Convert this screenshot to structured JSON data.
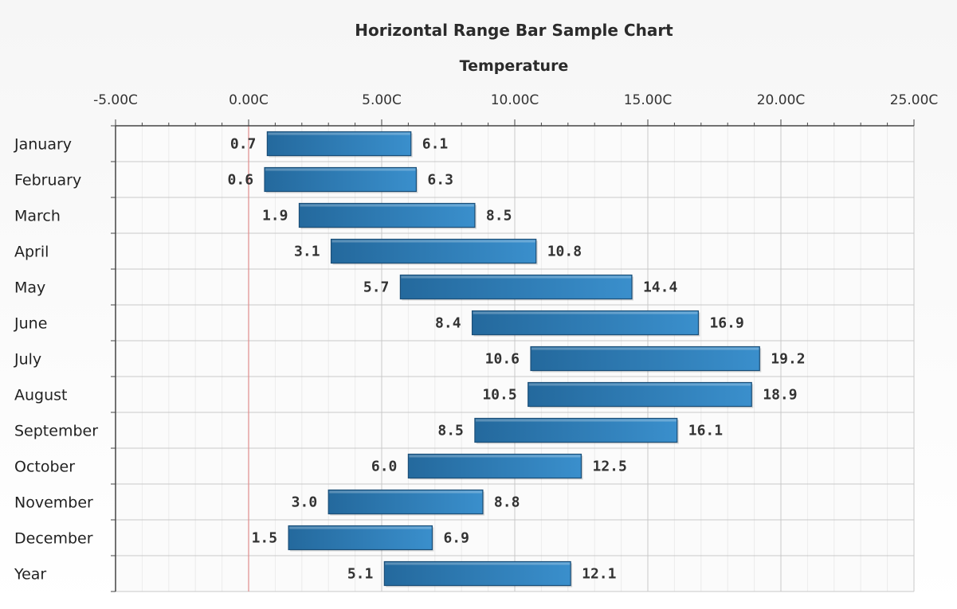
{
  "chart_data": {
    "type": "bar",
    "orientation": "horizontal",
    "range": true,
    "title": "Horizontal Range Bar Sample Chart",
    "xlabel": "Temperature",
    "ylabel": "",
    "xlim": [
      -5,
      25
    ],
    "x_tick_step": 5,
    "x_tick_labels": [
      "-5.00C",
      "0.00C",
      "5.00C",
      "10.00C",
      "15.00C",
      "20.00C",
      "25.00C"
    ],
    "categories": [
      "January",
      "February",
      "March",
      "April",
      "May",
      "June",
      "July",
      "August",
      "September",
      "October",
      "November",
      "December",
      "Year"
    ],
    "series": [
      {
        "low": [
          0.7,
          0.6,
          1.9,
          3.1,
          5.7,
          8.4,
          10.6,
          10.5,
          8.5,
          6.0,
          3.0,
          1.5,
          5.1
        ],
        "high": [
          6.1,
          6.3,
          8.5,
          10.8,
          14.4,
          16.9,
          19.2,
          18.9,
          16.1,
          12.5,
          8.8,
          6.9,
          12.1
        ],
        "low_labels": [
          "0.7",
          "0.6",
          "1.9",
          "3.1",
          "5.7",
          "8.4",
          "10.6",
          "10.5",
          "8.5",
          "6.0",
          "3.0",
          "1.5",
          "5.1"
        ],
        "high_labels": [
          "6.1",
          "6.3",
          "8.5",
          "10.8",
          "14.4",
          "16.9",
          "19.2",
          "18.9",
          "16.1",
          "12.5",
          "8.8",
          "6.9",
          "12.1"
        ],
        "color": "#2f7fba"
      }
    ],
    "zero_line_color": "#e08c8c",
    "grid": true,
    "legend": "none"
  }
}
